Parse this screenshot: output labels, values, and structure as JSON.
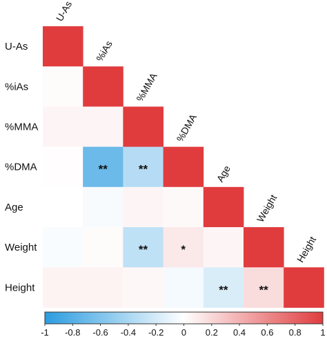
{
  "chart_data": {
    "type": "heatmap",
    "variables": [
      "U-As",
      "%iAs",
      "%MMA",
      "%DMA",
      "Age",
      "Weight",
      "Height"
    ],
    "matrix": [
      [
        1.0,
        0.02,
        0.05,
        0.01,
        0.0,
        -0.03,
        0.06
      ],
      [
        0.02,
        1.0,
        0.05,
        -0.7,
        -0.04,
        0.02,
        0.06
      ],
      [
        0.05,
        0.05,
        1.0,
        -0.35,
        0.05,
        -0.3,
        0.04
      ],
      [
        0.01,
        -0.7,
        -0.35,
        1.0,
        0.03,
        0.12,
        -0.05
      ],
      [
        0.0,
        -0.04,
        0.05,
        0.03,
        1.0,
        0.05,
        -0.18
      ],
      [
        -0.03,
        0.02,
        -0.3,
        0.12,
        0.05,
        1.0,
        0.18
      ],
      [
        0.06,
        0.06,
        0.04,
        -0.05,
        -0.18,
        0.18,
        1.0
      ]
    ],
    "significance": [
      {
        "row": "%DMA",
        "col": "%iAs",
        "label": "**"
      },
      {
        "row": "%DMA",
        "col": "%MMA",
        "label": "**"
      },
      {
        "row": "Weight",
        "col": "%MMA",
        "label": "**"
      },
      {
        "row": "Weight",
        "col": "%DMA",
        "label": "*"
      },
      {
        "row": "Height",
        "col": "Age",
        "label": "**"
      },
      {
        "row": "Height",
        "col": "Weight",
        "label": "**"
      }
    ],
    "colorbar": {
      "ticks": [
        -1,
        -0.8,
        -0.6,
        -0.4,
        -0.2,
        0,
        0.2,
        0.4,
        0.6,
        0.8,
        1
      ],
      "tick_labels": [
        "-1",
        "-0.8",
        "-0.6",
        "-0.4",
        "-0.2",
        "0",
        "0.2",
        "0.4",
        "0.6",
        "0.8",
        "1"
      ],
      "range": [
        -1,
        1
      ],
      "low_color": "#2b9ce0",
      "mid_color": "#ffffff",
      "high_color": "#e03c3e"
    },
    "layout": "lower-triangle"
  }
}
